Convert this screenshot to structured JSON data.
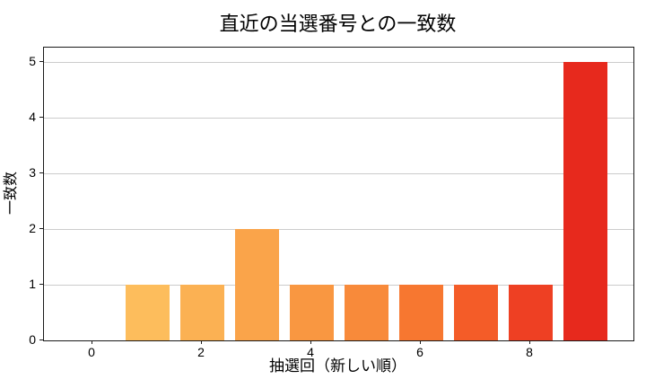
{
  "chart_data": {
    "type": "bar",
    "title": "直近の当選番号との一致数",
    "xlabel": "抽選回（新しい順）",
    "ylabel": "一致数",
    "categories": [
      0,
      1,
      2,
      3,
      4,
      5,
      6,
      7,
      8,
      9
    ],
    "values": [
      0,
      1,
      1,
      2,
      1,
      1,
      1,
      1,
      1,
      5
    ],
    "bar_colors": [
      "#fdc968",
      "#fdbd5c",
      "#fbb153",
      "#faa44a",
      "#f99741",
      "#f88a3a",
      "#f77730",
      "#f45c28",
      "#ee4023",
      "#e7291d"
    ],
    "xticks": [
      0,
      2,
      4,
      6,
      8
    ],
    "yticks": [
      0,
      1,
      2,
      3,
      4,
      5
    ],
    "ylim": [
      0,
      5.25
    ],
    "xlim": [
      -0.89,
      9.89
    ],
    "grid": "horizontal",
    "gridline_color": "#cccccc",
    "spine_color": "#1a1a1a",
    "legend": "none"
  }
}
